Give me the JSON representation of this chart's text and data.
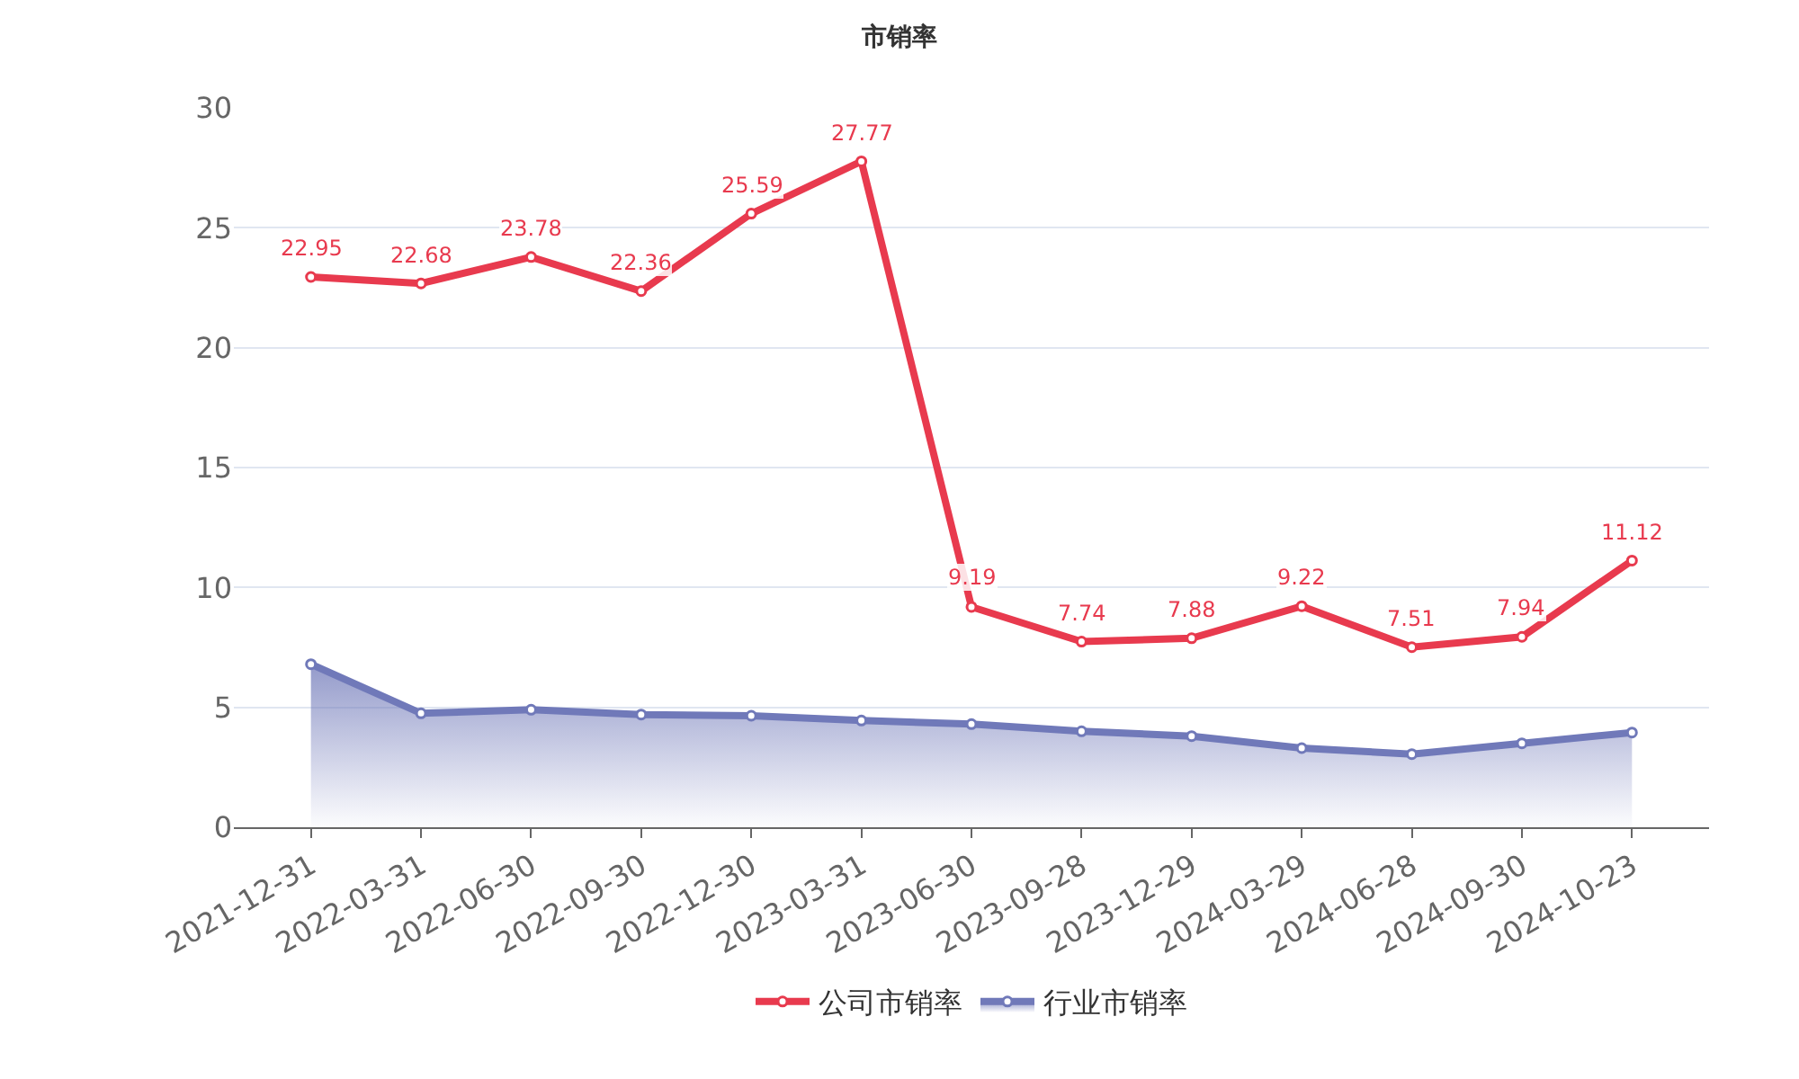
{
  "chart_data": {
    "type": "line",
    "title": "市销率",
    "categories": [
      "2021-12-31",
      "2022-03-31",
      "2022-06-30",
      "2022-09-30",
      "2022-12-30",
      "2023-03-31",
      "2023-06-30",
      "2023-09-28",
      "2023-12-29",
      "2024-03-29",
      "2024-06-28",
      "2024-09-30",
      "2024-10-23"
    ],
    "series": [
      {
        "name": "公司市销率",
        "color": "#e83a4e",
        "values": [
          22.95,
          22.68,
          23.78,
          22.36,
          25.59,
          27.77,
          9.19,
          7.74,
          7.88,
          9.22,
          7.51,
          7.94,
          11.12
        ],
        "value_labels": [
          "22.95",
          "22.68",
          "23.78",
          "22.36",
          "25.59",
          "27.77",
          "9.19",
          "7.74",
          "7.88",
          "9.22",
          "7.51",
          "7.94",
          "11.12"
        ]
      },
      {
        "name": "行业市销率",
        "type": "area",
        "color": "#7079b9",
        "values": [
          6.8,
          4.75,
          4.9,
          4.7,
          4.65,
          4.45,
          4.3,
          4.0,
          3.8,
          3.3,
          3.05,
          3.5,
          3.95
        ]
      }
    ],
    "ylim": [
      0,
      30
    ],
    "yticks": [
      0,
      5,
      10,
      15,
      20,
      25,
      30
    ],
    "grid": "y",
    "legend": "bottom",
    "marker": "circle",
    "line_style": "solid"
  }
}
